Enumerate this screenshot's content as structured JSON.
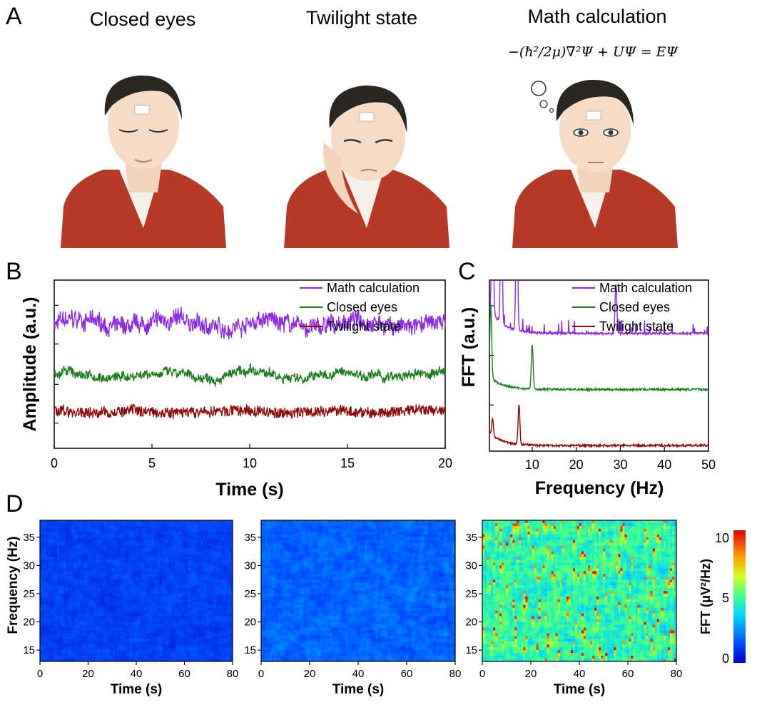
{
  "panels": {
    "a": "A",
    "b": "B",
    "c": "C",
    "d": "D"
  },
  "illustrations": [
    {
      "caption": "Closed eyes"
    },
    {
      "caption": "Twilight state"
    },
    {
      "caption": "Math calculation",
      "equation": "−(ħ²/2μ)∇²Ψ + UΨ = EΨ"
    }
  ],
  "colors": {
    "math": "#8a2be2",
    "closed": "#1e7d1e",
    "twilight": "#8b0a0a",
    "jacket": "#b63a2a",
    "hair": "#2a2622",
    "skin": "#f6dcc6"
  },
  "chart_data": [
    {
      "id": "B",
      "type": "line",
      "xlabel": "Time (s)",
      "ylabel": "Amplitude (a.u.)",
      "xlim": [
        0,
        20
      ],
      "xticks": [
        0,
        5,
        10,
        15,
        20
      ],
      "legend_position": "top-right",
      "series": [
        {
          "name": "Math calculation",
          "offset": 3.4,
          "noise": 0.22,
          "wobble": 0.18
        },
        {
          "name": "Closed eyes",
          "offset": 2.0,
          "noise": 0.12,
          "wobble": 0.12
        },
        {
          "name": "Twilight state",
          "offset": 1.0,
          "noise": 0.15,
          "wobble": 0.05
        }
      ]
    },
    {
      "id": "C",
      "type": "line",
      "xlabel": "Frequency (Hz)",
      "ylabel": "FFT (a.u.)",
      "xlim": [
        0,
        50
      ],
      "xticks": [
        10,
        20,
        30,
        40,
        50
      ],
      "legend_position": "top-right",
      "series": [
        {
          "name": "Math calculation",
          "baseline": 2.0,
          "peaks": [
            [
              1,
              2.6
            ],
            [
              3,
              2.4
            ],
            [
              6.5,
              2.6
            ],
            [
              29,
              0.9
            ]
          ]
        },
        {
          "name": "Closed eyes",
          "baseline": 1.0,
          "peaks": [
            [
              0.6,
              1.3
            ],
            [
              10,
              0.8
            ]
          ]
        },
        {
          "name": "Twilight state",
          "baseline": 0.0,
          "peaks": [
            [
              1,
              0.3
            ],
            [
              7,
              0.7
            ]
          ]
        }
      ]
    },
    {
      "id": "D",
      "type": "heatmap",
      "xlabel": "Time (s)",
      "ylabel": "Frequency (Hz)",
      "xlim": [
        0,
        80
      ],
      "ylim": [
        13,
        38
      ],
      "xticks": [
        0,
        20,
        40,
        60,
        80
      ],
      "yticks": [
        15,
        20,
        25,
        30,
        35
      ],
      "colorbar": {
        "label": "FFT (μV²/Hz)",
        "min": 0,
        "max": 10,
        "ticks": [
          0,
          5,
          10
        ]
      },
      "maps": [
        {
          "name": "Closed eyes",
          "mean_level": 1.2,
          "spread": 1.0
        },
        {
          "name": "Twilight state",
          "mean_level": 1.8,
          "spread": 1.4
        },
        {
          "name": "Math calculation",
          "mean_level": 4.6,
          "spread": 3.0
        }
      ]
    }
  ]
}
